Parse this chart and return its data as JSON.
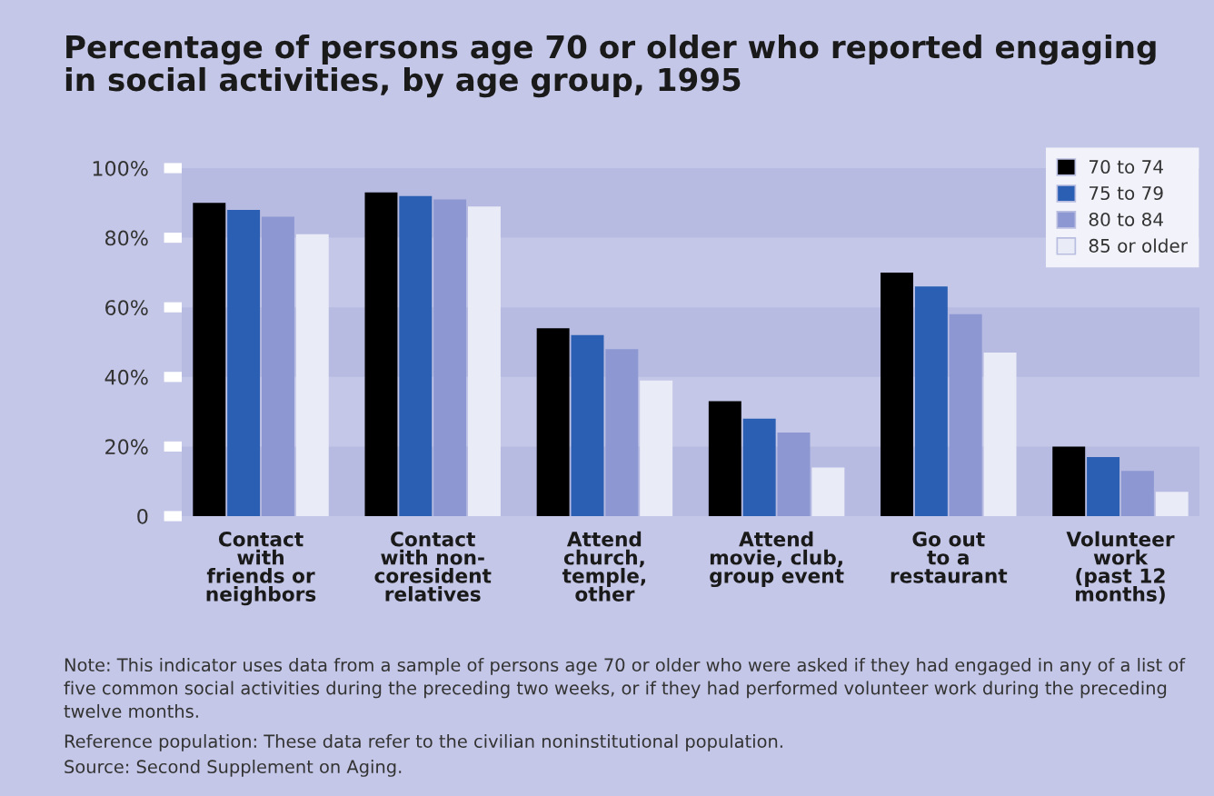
{
  "chart_data": {
    "type": "bar",
    "title": "Percentage of persons age 70 or older who reported engaging\nin social activities, by age group, 1995",
    "categories": [
      "Contact\nwith\nfriends or\nneighbors",
      "Contact\nwith non-\ncoresident\nrelatives",
      "Attend\nchurch,\ntemple,\nother",
      "Attend\nmovie, club,\ngroup event",
      "Go out\nto a\nrestaurant",
      "Volunteer\nwork\n(past 12\nmonths)"
    ],
    "series": [
      {
        "name": "70 to 74",
        "color": "#000000",
        "values": [
          90,
          93,
          54,
          33,
          70,
          20
        ]
      },
      {
        "name": "75 to 79",
        "color": "#2b5fb3",
        "values": [
          88,
          92,
          52,
          28,
          66,
          17
        ]
      },
      {
        "name": "80 to 84",
        "color": "#8d97d2",
        "values": [
          86,
          91,
          48,
          24,
          58,
          13
        ]
      },
      {
        "name": "85 or older",
        "color": "#e9ebf7",
        "values": [
          81,
          89,
          39,
          14,
          47,
          7
        ]
      }
    ],
    "ylim": [
      0,
      100
    ],
    "yticks": [
      0,
      {
        "value": 20,
        "label": "20%"
      },
      {
        "value": 40,
        "label": "40%"
      },
      {
        "value": 60,
        "label": "60%"
      },
      {
        "value": 80,
        "label": "80%"
      },
      {
        "value": 100,
        "label": "100%"
      }
    ],
    "bands": [
      {
        "axis": "y",
        "from": 0,
        "to": 20,
        "color": "#b7bbe1"
      },
      {
        "axis": "y",
        "from": 40,
        "to": 60,
        "color": "#b7bbe1"
      },
      {
        "axis": "y",
        "from": 80,
        "to": 100,
        "color": "#b7bbe1"
      }
    ],
    "legend": "top right",
    "annotations": [
      "Note: This indicator uses data from a sample of persons age 70 or older who were asked if they had engaged in any of a list of five common social activities during the preceding two weeks, or if they had performed volunteer work during the preceding twelve months.",
      "Reference population: These data refer to the civilian noninstitutional population.",
      "Source: Second Supplement on Aging."
    ]
  }
}
